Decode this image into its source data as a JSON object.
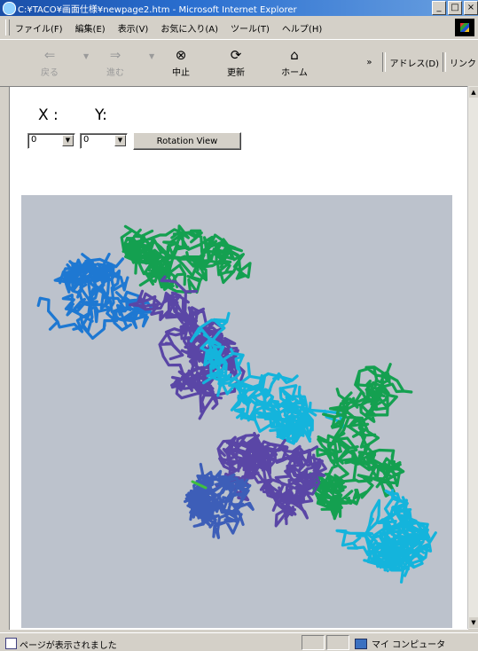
{
  "window": {
    "title": "C:¥TACO¥画面仕様¥newpage2.htm - Microsoft Internet Explorer",
    "buttons": {
      "minimize": "_",
      "maximize": "□",
      "close": "×"
    }
  },
  "menubar": {
    "items": [
      {
        "id": "file",
        "label": "ファイル(F)"
      },
      {
        "id": "edit",
        "label": "編集(E)"
      },
      {
        "id": "view",
        "label": "表示(V)"
      },
      {
        "id": "favorites",
        "label": "お気に入り(A)"
      },
      {
        "id": "tools",
        "label": "ツール(T)"
      },
      {
        "id": "help",
        "label": "ヘルプ(H)"
      }
    ]
  },
  "toolbar": {
    "back": "戻る",
    "forward": "進む",
    "stop": "中止",
    "refresh": "更新",
    "home": "ホーム",
    "overflow": "»",
    "address": "アドレス(D)",
    "links": "リンク"
  },
  "page": {
    "x_label": "X :",
    "y_label": "Y:",
    "x_select": "0",
    "y_select": "0",
    "rotation_button": "Rotation View"
  },
  "viewer": {
    "background": "#bcc2cc",
    "chain_colors": {
      "green": "#14a050",
      "blue": "#1e78d2",
      "purple": "#5a46a6",
      "cyan": "#14b4dc"
    }
  },
  "statusbar": {
    "text": "ページが表示されました",
    "zone": "マイ コンピュータ"
  }
}
